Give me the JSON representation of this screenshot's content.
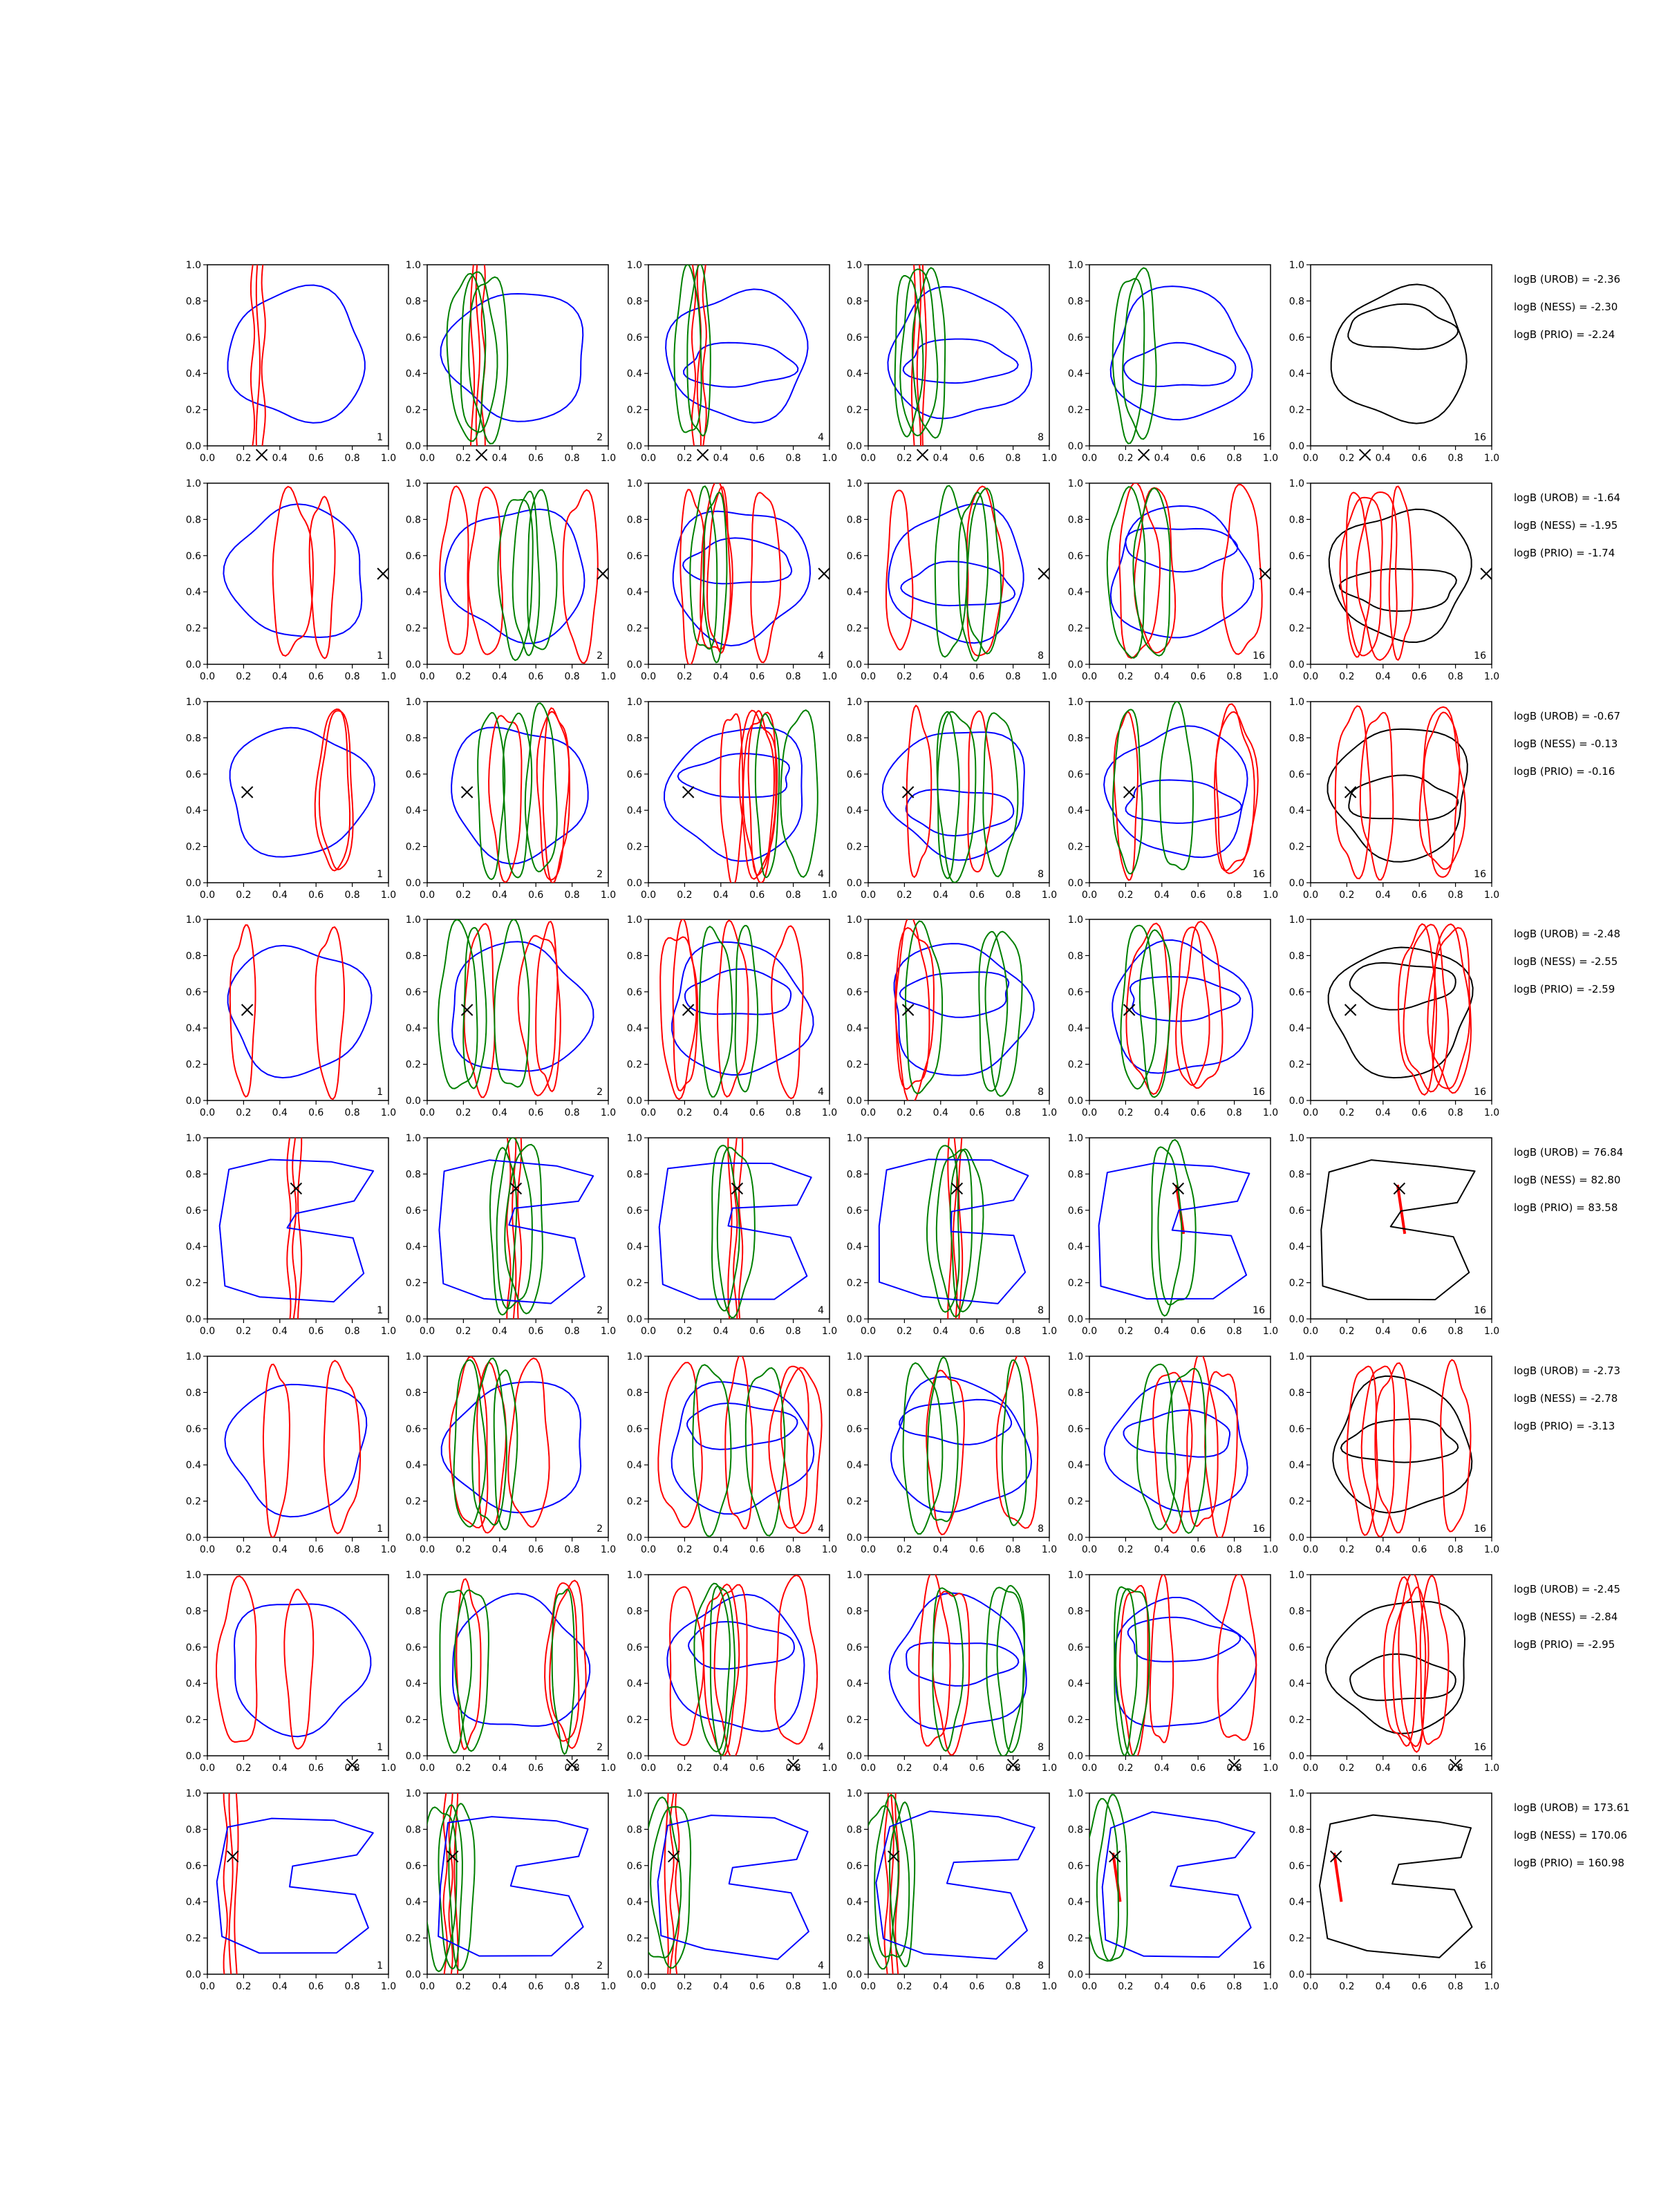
{
  "figure": {
    "background": "#ffffff"
  },
  "colors": {
    "blue": "#0000ff",
    "red": "#ff0000",
    "green": "#008000",
    "black": "#000000"
  },
  "chart_data": {
    "type": "contour",
    "grid": false,
    "xlim": [
      0,
      1
    ],
    "ylim": [
      0,
      1
    ],
    "xticks": [
      "0.0",
      "0.2",
      "0.4",
      "0.6",
      "0.8",
      "1.0"
    ],
    "yticks": [
      "0.0",
      "0.2",
      "0.4",
      "0.6",
      "0.8",
      "1.0"
    ],
    "column_labels": [
      "1",
      "2",
      "4",
      "8",
      "16",
      "16"
    ],
    "rows": [
      {
        "marker": [
          0.3,
          -0.05
        ],
        "red_band_x": 0.28,
        "annotations": [
          "logB (UROB) = -2.36",
          "logB (NESS) = -2.30",
          "logB (PRIO) = -2.24"
        ]
      },
      {
        "marker": [
          0.97,
          0.5
        ],
        "red_band_x": null,
        "annotations": [
          "logB (UROB) = -1.64",
          "logB (NESS) = -1.95",
          "logB (PRIO) = -1.74"
        ]
      },
      {
        "marker": [
          0.22,
          0.5
        ],
        "red_band_x": null,
        "annotations": [
          "logB (UROB) = -0.67",
          "logB (NESS) = -0.13",
          "logB (PRIO) = -0.16"
        ]
      },
      {
        "marker": [
          0.22,
          0.5
        ],
        "red_band_x": null,
        "annotations": [
          "logB (UROB) = -2.48",
          "logB (NESS) = -2.55",
          "logB (PRIO) = -2.59"
        ]
      },
      {
        "marker": [
          0.49,
          0.72
        ],
        "red_band_x": 0.48,
        "annotations": [
          "logB (UROB) = 76.84",
          "logB (NESS) = 82.80",
          "logB (PRIO) = 83.58"
        ]
      },
      {
        "marker": null,
        "red_band_x": null,
        "annotations": [
          "logB (UROB) = -2.73",
          "logB (NESS) = -2.78",
          "logB (PRIO) = -3.13"
        ]
      },
      {
        "marker": [
          0.8,
          -0.05
        ],
        "red_band_x": null,
        "annotations": [
          "logB (UROB) = -2.45",
          "logB (NESS) = -2.84",
          "logB (PRIO) = -2.95"
        ]
      },
      {
        "marker": [
          0.14,
          0.65
        ],
        "red_band_x": 0.13,
        "annotations": [
          "logB (UROB) = 173.61",
          "logB (NESS) = 170.06",
          "logB (PRIO) = 160.98"
        ]
      }
    ]
  }
}
